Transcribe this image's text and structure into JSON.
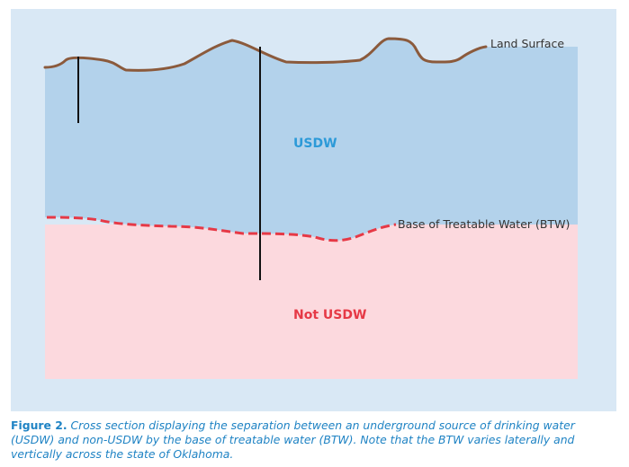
{
  "diagram": {
    "labels": {
      "land_surface": "Land Surface",
      "btw": "Base of Treatable Water (BTW)",
      "usdw": "USDW",
      "not_usdw": "Not USDW"
    },
    "colors": {
      "usdw_zone": "#b3d2eb",
      "not_usdw_zone": "#fcd9de",
      "land_line": "#8b5a3c",
      "btw_line": "#e63946",
      "usdw_text": "#2c9ad8",
      "not_usdw_text": "#e63946",
      "background": "#d9e8f5"
    }
  },
  "caption": {
    "figure_label": "Figure 2.",
    "text": "Cross section displaying the separation between an underground source of drinking water (USDW) and non-USDW by the base of treatable water (BTW). Note that the BTW varies laterally and vertically across the state of Oklahoma."
  }
}
